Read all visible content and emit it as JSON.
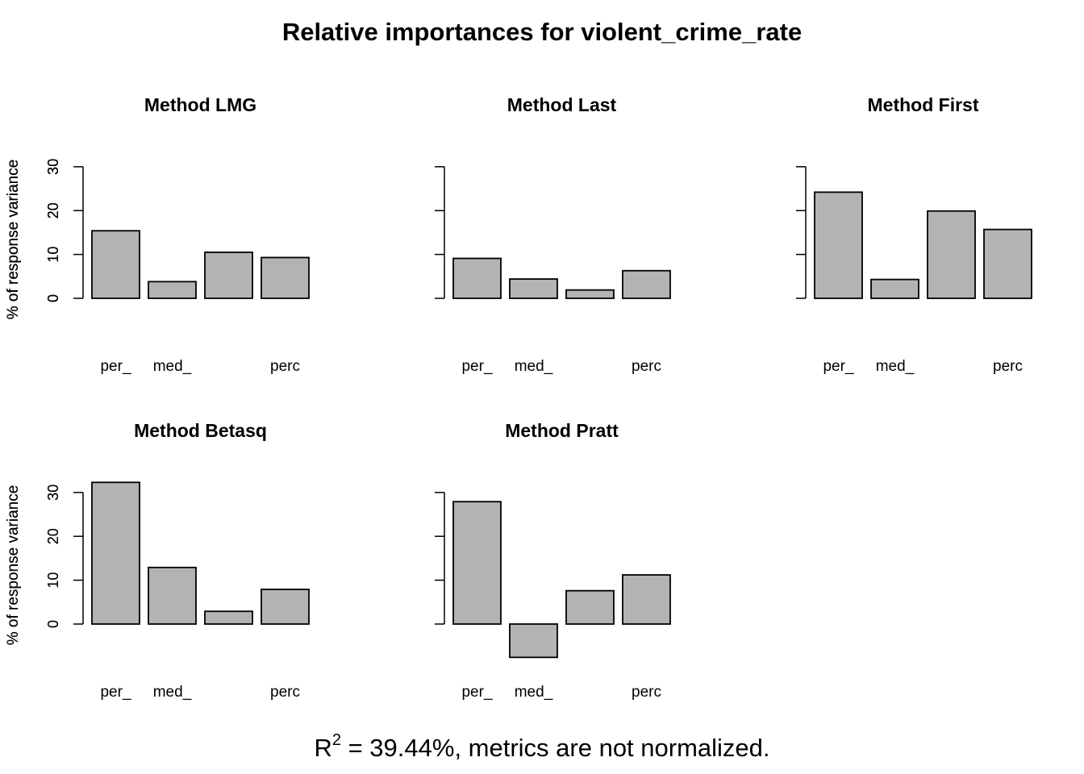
{
  "title": "Relative importances for violent_crime_rate",
  "footer": {
    "r2_base": "R",
    "r2_sup": "2",
    "r2_text": " = 39.44%, metrics are not normalized."
  },
  "colors": {
    "bar_fill": "#b3b3b3",
    "bar_stroke": "#000000",
    "axis": "#000000"
  },
  "chart_data": [
    {
      "type": "bar",
      "title": "Method LMG",
      "ylabel": "% of response variance",
      "categories": [
        "per_",
        "med_",
        "",
        "perc"
      ],
      "values": [
        15.4,
        3.8,
        10.5,
        9.3
      ],
      "yticks": [
        0,
        10,
        20,
        30
      ],
      "ylim": [
        0,
        30
      ],
      "grid": false
    },
    {
      "type": "bar",
      "title": "Method Last",
      "ylabel": "% of response variance",
      "categories": [
        "per_",
        "med_",
        "",
        "perc"
      ],
      "values": [
        9.1,
        4.4,
        1.9,
        6.3
      ],
      "yticks": [
        0,
        10,
        20,
        30
      ],
      "ylim": [
        0,
        30
      ],
      "grid": false
    },
    {
      "type": "bar",
      "title": "Method First",
      "ylabel": "% of response variance",
      "categories": [
        "per_",
        "med_",
        "",
        "perc"
      ],
      "values": [
        24.2,
        4.3,
        19.9,
        15.7
      ],
      "yticks": [
        0,
        10,
        20,
        30
      ],
      "ylim": [
        0,
        30
      ],
      "grid": false
    },
    {
      "type": "bar",
      "title": "Method Betasq",
      "ylabel": "% of response variance",
      "categories": [
        "per_",
        "med_",
        "",
        "perc"
      ],
      "values": [
        32.3,
        12.9,
        2.9,
        7.9
      ],
      "yticks": [
        0,
        10,
        20,
        30
      ],
      "ylim": [
        0,
        32.3
      ],
      "grid": false
    },
    {
      "type": "bar",
      "title": "Method Pratt",
      "ylabel": "% of response variance",
      "categories": [
        "per_",
        "med_",
        "",
        "perc"
      ],
      "values": [
        27.9,
        -7.6,
        7.6,
        11.2
      ],
      "yticks": [
        0,
        10,
        20,
        30
      ],
      "ylim": [
        -7.6,
        30
      ],
      "grid": false
    }
  ]
}
